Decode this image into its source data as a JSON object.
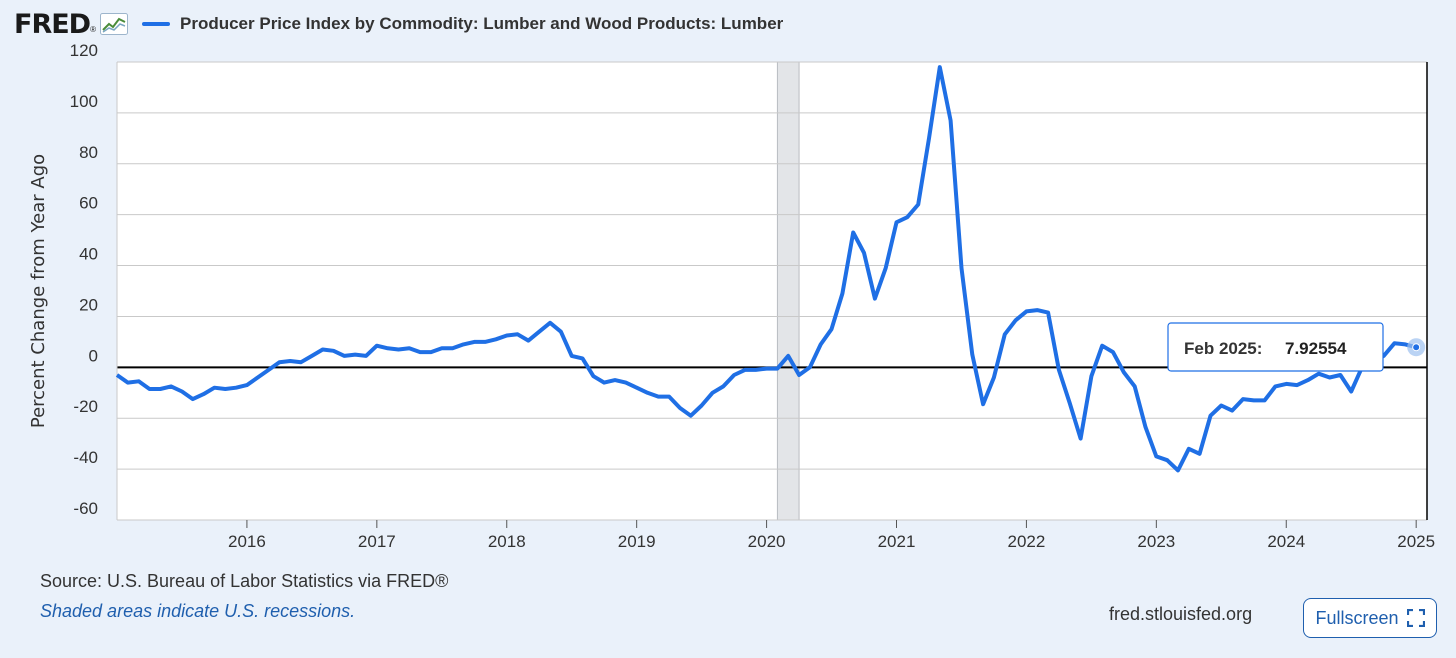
{
  "header": {
    "logo_text": "FRED",
    "logo_reg": "®",
    "series_title": "Producer Price Index by Commodity: Lumber and Wood Products: Lumber"
  },
  "tooltip": {
    "label": "Feb 2025:",
    "value": "7.92554"
  },
  "footer": {
    "source": "Source: U.S. Bureau of Labor Statistics via FRED®",
    "note": "Shaded areas indicate U.S. recessions.",
    "url": "fred.stlouisfed.org",
    "fullscreen_label": "Fullscreen"
  },
  "colors": {
    "series": "#1f6fe5",
    "background": "#eaf1fa",
    "plot_bg": "#ffffff",
    "recession": "#e3e5e8",
    "link": "#1f5fae"
  },
  "icons": {
    "logo": "fred-trend-icon",
    "fullscreen": "expand-icon"
  },
  "chart_data": {
    "type": "line",
    "ylabel": "Percent Change from Year Ago",
    "xlabel": "",
    "ylim": [
      -60,
      120
    ],
    "xlim": [
      "2015-01",
      "2025-02"
    ],
    "yticks": [
      120,
      100,
      80,
      60,
      40,
      20,
      0,
      -20,
      -40,
      -60
    ],
    "xticks": [
      "2016",
      "2017",
      "2018",
      "2019",
      "2020",
      "2021",
      "2022",
      "2023",
      "2024",
      "2025"
    ],
    "grid": true,
    "recessions": [
      {
        "start": "2020-02",
        "end": "2020-04"
      }
    ],
    "series": [
      {
        "start": "2015-01",
        "frequency": "monthly",
        "values": [
          -3,
          -6,
          -5.5,
          -8.5,
          -8.5,
          -7.5,
          -9.5,
          -12.5,
          -10.5,
          -8,
          -8.5,
          -8,
          -7,
          -4,
          -1,
          2,
          2.5,
          2,
          4.5,
          7,
          6.5,
          4.5,
          5,
          4.5,
          8.5,
          7.5,
          7,
          7.5,
          6,
          6,
          7.5,
          7.5,
          9,
          10,
          10,
          11,
          12.5,
          13,
          10.5,
          14,
          17.5,
          14,
          4.5,
          3.5,
          -3.5,
          -6,
          -5,
          -6,
          -8,
          -10,
          -11.5,
          -11.5,
          -16,
          -19,
          -15,
          -10,
          -7.5,
          -3,
          -1,
          -1,
          -0.5,
          -0.5,
          4.5,
          -3,
          0,
          9,
          15,
          29,
          53,
          45,
          27,
          39,
          57,
          59,
          64,
          90,
          118,
          97,
          39,
          5,
          -14.5,
          -4,
          13,
          18.5,
          22,
          22.5,
          21.5,
          -1,
          -14,
          -28,
          -3.5,
          8.5,
          6,
          -2,
          -7.5,
          -23.5,
          -35,
          -36.5,
          -40.5,
          -32,
          -34,
          -19,
          -15,
          -17,
          -12.5,
          -13,
          -13,
          -7.5,
          -6.5,
          -7,
          -5,
          -2.5,
          -4,
          -3,
          -9.5,
          0,
          2,
          4.5,
          9.5,
          9,
          7.9
        ]
      }
    ]
  }
}
